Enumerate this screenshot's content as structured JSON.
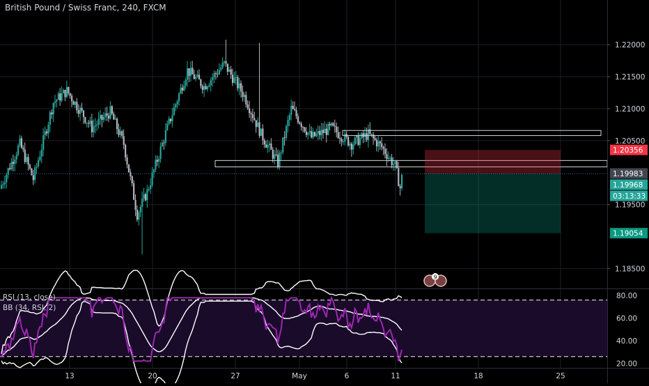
{
  "chart_data": {
    "type": "candlestick",
    "title": "British Pound / Swiss Franc, 240, FXCM",
    "price_axis": {
      "ticks": [
        "1.22000",
        "1.21500",
        "1.21000",
        "1.20500",
        "1.19500",
        "1.18500"
      ],
      "range": [
        1.182,
        1.227
      ]
    },
    "x_axis_labels": [
      "13",
      "20",
      "27",
      "May",
      "6",
      "11",
      "18",
      "25"
    ],
    "price_badges": [
      {
        "label": "1.20356",
        "value": 1.20356,
        "color": "#f23645"
      },
      {
        "label": "1.19983",
        "value": 1.19983,
        "color": "#434651"
      },
      {
        "label": "1.19968",
        "value": 1.19968,
        "color": "#26a69a"
      },
      {
        "label": "03:13:33",
        "value": 1.1977,
        "color": "#26a69a"
      },
      {
        "label": "1.19054",
        "value": 1.19054,
        "color": "#089981"
      }
    ],
    "zones": [
      {
        "name": "resistance-zone",
        "from_x": "6",
        "to_x": "25",
        "low": 1.2058,
        "high": 1.2066
      },
      {
        "name": "support-zone",
        "from_x": "27",
        "to_x": "25",
        "low": 1.2009,
        "high": 1.2019
      }
    ],
    "position": {
      "entry": 1.19983,
      "stop": 1.20356,
      "target": 1.19054,
      "stop_color": "#f23645",
      "target_color": "#089981"
    },
    "events_badge": "9",
    "candles_summary": {
      "start": 1.1975,
      "lows": [
        1.191,
        1.1895,
        1.199
      ],
      "highs": [
        1.213,
        1.221,
        1.22,
        1.211,
        1.207
      ],
      "last_close": 1.19968
    },
    "rsi": {
      "legend": "RSI (13, close)",
      "bb_legend": "BB (34, RSI, 2)",
      "ticks": [
        "80.00",
        "60.00",
        "40.00",
        "20.00"
      ],
      "range": [
        16,
        85
      ],
      "upper_band": 76,
      "lower_band": 26,
      "line_color": "#9c27b0"
    },
    "colors": {
      "up": "#26a69a",
      "down": "#b2b5be",
      "grid": "#1c1f26"
    }
  }
}
